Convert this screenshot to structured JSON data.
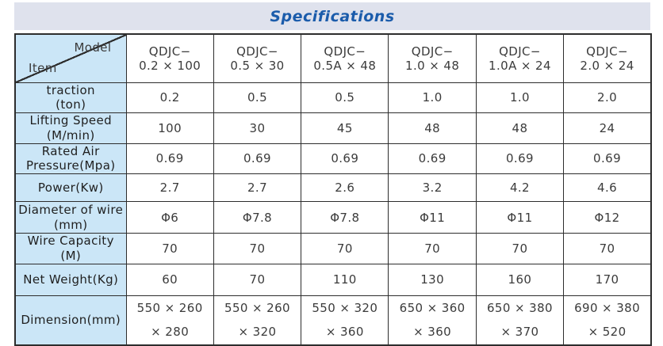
{
  "title": "Specifications",
  "colors": {
    "title_band_bg": "#dfe2ed",
    "title_text": "#1b5cab",
    "label_cell_bg": "#cbe6f7",
    "border": "#2d2d2d",
    "data_cell_bg": "#ffffff"
  },
  "corner": {
    "model": "Model",
    "item": "Item"
  },
  "columns": [
    {
      "l1": "QDJC−",
      "l2": "0.2 × 100"
    },
    {
      "l1": "QDJC−",
      "l2": "0.5 × 30"
    },
    {
      "l1": "QDJC−",
      "l2": "0.5A × 48"
    },
    {
      "l1": "QDJC−",
      "l2": "1.0 × 48"
    },
    {
      "l1": "QDJC−",
      "l2": "1.0A × 24"
    },
    {
      "l1": "QDJC−",
      "l2": "2.0 × 24"
    }
  ],
  "rows": [
    {
      "label": "traction\n(ton)",
      "values": [
        "0.2",
        "0.5",
        "0.5",
        "1.0",
        "1.0",
        "2.0"
      ]
    },
    {
      "label": "Lifting Speed\n(M/min)",
      "values": [
        "100",
        "30",
        "45",
        "48",
        "48",
        "24"
      ]
    },
    {
      "label": "Rated Air\nPressure(Mpa)",
      "values": [
        "0.69",
        "0.69",
        "0.69",
        "0.69",
        "0.69",
        "0.69"
      ]
    },
    {
      "label": "Power(Kw)",
      "values": [
        "2.7",
        "2.7",
        "2.6",
        "3.2",
        "4.2",
        "4.6"
      ]
    },
    {
      "label": "Diameter of wire\n(mm)",
      "values": [
        "Φ6",
        "Φ7.8",
        "Φ7.8",
        "Φ11",
        "Φ11",
        "Φ12"
      ]
    },
    {
      "label": "Wire Capacity\n(M)",
      "values": [
        "70",
        "70",
        "70",
        "70",
        "70",
        "70"
      ]
    },
    {
      "label": "Net Weight(Kg)",
      "values": [
        "60",
        "70",
        "110",
        "130",
        "160",
        "170"
      ]
    },
    {
      "label": "Dimension(mm)",
      "values": [
        "550 × 260\n× 280",
        "550 × 260\n× 320",
        "550 × 320\n× 360",
        "650 × 360\n× 360",
        "650 × 380\n× 370",
        "690 × 380\n× 520"
      ]
    }
  ]
}
